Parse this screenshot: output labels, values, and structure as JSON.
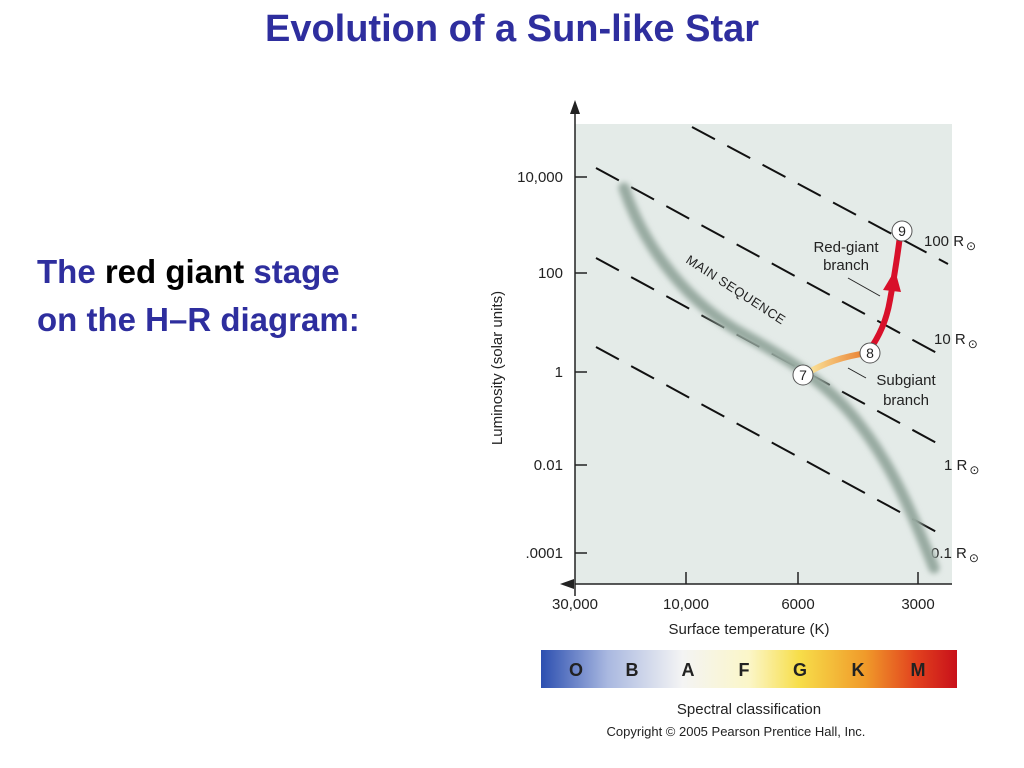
{
  "slide": {
    "title": "Evolution of a Sun-like Star",
    "subtitle": {
      "part1": "The ",
      "highlight": "red giant",
      "part2": " stage",
      "line2": "on the H–R diagram:"
    }
  },
  "diagram": {
    "y_axis_label": "Luminosity (solar units)",
    "x_axis_label": "Surface temperature (K)",
    "y_ticks": [
      "10,000",
      "100",
      "1",
      "0.01",
      ".0001"
    ],
    "x_ticks": [
      "30,000",
      "10,000",
      "6000",
      "3000"
    ],
    "main_sequence_label": "MAIN SEQUENCE",
    "radius_lines": [
      {
        "label": "100 R",
        "sym": "⊙"
      },
      {
        "label": "10 R",
        "sym": "⊙"
      },
      {
        "label": "1 R",
        "sym": "⊙"
      },
      {
        "label": "0.1 R",
        "sym": "⊙"
      }
    ],
    "stages": [
      {
        "number": "7"
      },
      {
        "number": "8"
      },
      {
        "number": "9"
      }
    ],
    "branch_labels": {
      "red_giant_line1": "Red-giant",
      "red_giant_line2": "branch",
      "subgiant_line1": "Subgiant",
      "subgiant_line2": "branch"
    },
    "spectral": {
      "classes": [
        "O",
        "B",
        "A",
        "F",
        "G",
        "K",
        "M"
      ],
      "label": "Spectral classification"
    },
    "copyright": "Copyright © 2005 Pearson Prentice Hall, Inc.",
    "colors": {
      "plot_bg": "#e4ebe8",
      "title": "#2e2e9e",
      "track_red": "#d8102a",
      "subgiant_orange": "#f0a040"
    }
  }
}
